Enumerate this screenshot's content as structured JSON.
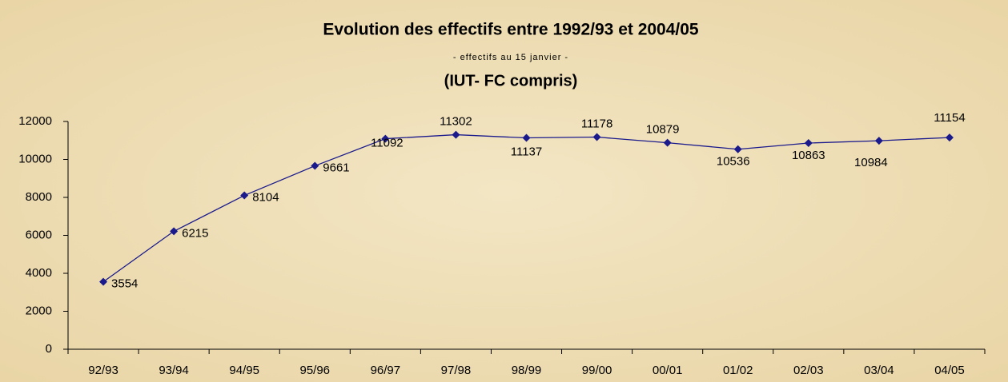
{
  "chart_data": {
    "type": "line",
    "title": "Evolution des effectifs entre 1992/93 et 2004/05",
    "subtitle": "- effectifs au 15 janvier -",
    "subtitle2": "(IUT- FC compris)",
    "categories": [
      "92/93",
      "93/94",
      "94/95",
      "95/96",
      "96/97",
      "97/98",
      "98/99",
      "99/00",
      "00/01",
      "01/02",
      "02/03",
      "03/04",
      "04/05"
    ],
    "series": [
      {
        "name": "effectifs",
        "color": "#1a1a8c",
        "values": [
          3554,
          6215,
          8104,
          9661,
          11092,
          11302,
          11137,
          11178,
          10879,
          10536,
          10863,
          10984,
          11154
        ]
      }
    ],
    "ylim": [
      0,
      12000
    ],
    "yticks": [
      0,
      2000,
      4000,
      6000,
      8000,
      10000,
      12000
    ],
    "grid": false
  }
}
